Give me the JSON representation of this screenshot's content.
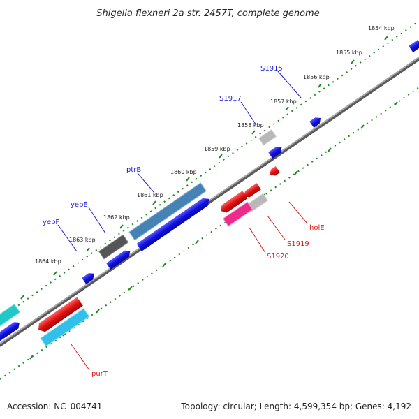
{
  "title": "Shigella flexneri 2a str. 2457T, complete genome",
  "footer": {
    "accession": "Accession: NC_004741",
    "summary": "Topology: circular; Length: 4,599,354 bp; Genes: 4,192"
  },
  "colors": {
    "backbone": "#8a8a8a",
    "tick_dots": "#1f8a1f",
    "forward_gene": "#1010e0",
    "reverse_gene": "#e01010",
    "label_forward": "#1a1ad6",
    "label_reverse": "#d61a1a"
  },
  "kbp_ticks": [
    "1854 kbp",
    "1855 kbp",
    "1856 kbp",
    "1857 kbp",
    "1858 kbp",
    "1859 kbp",
    "1860 kbp",
    "1861 kbp",
    "1862 kbp",
    "1863 kbp",
    "1864 kbp"
  ],
  "gene_labels": {
    "forward": [
      "S1915",
      "S1917",
      "ptrB",
      "yebE",
      "yebF"
    ],
    "reverse": [
      "holE",
      "S1919",
      "S1920",
      "purT"
    ]
  }
}
